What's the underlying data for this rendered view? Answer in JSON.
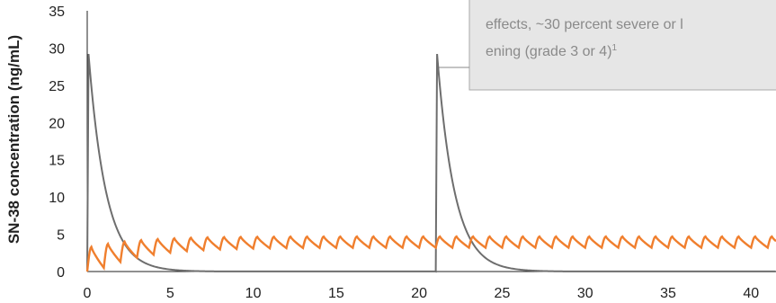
{
  "chart_data": {
    "type": "line",
    "title": "",
    "xlabel": "",
    "ylabel": "SN-38 concentration (ng/mL)",
    "xlim": [
      0,
      41.5
    ],
    "ylim": [
      0,
      35
    ],
    "x_ticks": [
      0,
      5,
      10,
      15,
      20,
      25,
      30,
      35,
      40
    ],
    "y_ticks": [
      0,
      5,
      10,
      15,
      20,
      25,
      30,
      35
    ],
    "grid": false,
    "series": [
      {
        "color": "#6e6e6e",
        "description_points": [
          {
            "x": 0,
            "y": 0
          },
          {
            "x": 0.1,
            "y": 29.2
          },
          {
            "x": 0.5,
            "y": 14
          },
          {
            "x": 1,
            "y": 8
          },
          {
            "x": 2,
            "y": 3.6
          },
          {
            "x": 3,
            "y": 1.5
          },
          {
            "x": 5,
            "y": 0.3
          },
          {
            "x": 7,
            "y": 0
          }
        ],
        "doses_at_day": [
          0,
          21
        ],
        "peak": 29.2,
        "decay_rate_per_day": 0.95
      },
      {
        "color": "#f07f2e",
        "dosing_interval_days": 1,
        "first_dose_day": 0,
        "peak_first": 3.3,
        "peak_steady_state": 4.7,
        "trough_first": 0.5,
        "trough_steady_state": 3.2,
        "extends_to_day": 41.5
      }
    ],
    "annotation": {
      "lines": [
        "effects, ~30 percent severe or l",
        "ening (grade 3 or 4)"
      ],
      "superscript": "1",
      "points_to": {
        "x": 21,
        "y": 25.5
      },
      "background": "#e6e6e6",
      "border": "#a9a9a9"
    }
  }
}
